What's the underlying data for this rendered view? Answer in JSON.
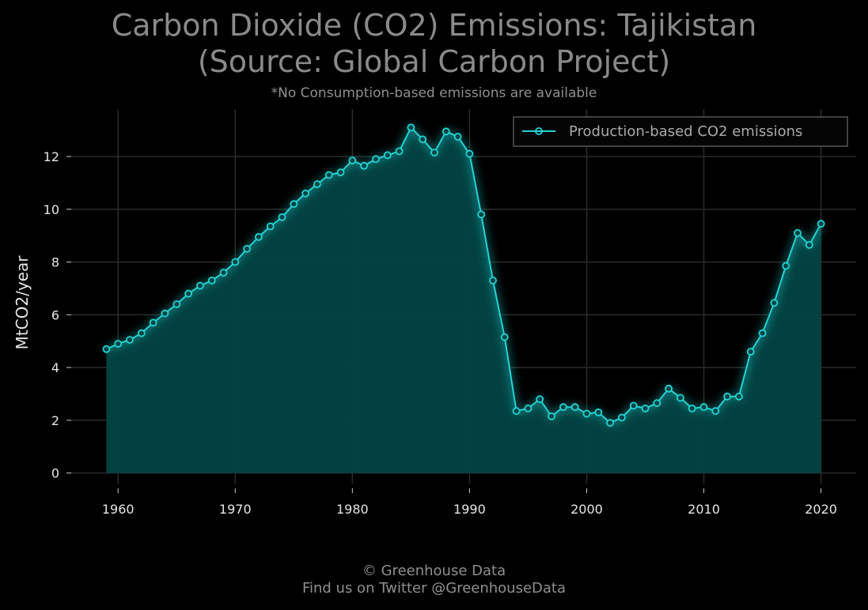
{
  "chart_data": {
    "type": "area",
    "title_line1": "Carbon Dioxide (CO2) Emissions: Tajikistan",
    "title_line2": "(Source: Global Carbon Project)",
    "subtitle": "*No Consumption-based emissions are available",
    "ylabel": "MtCO2/year",
    "xlim": [
      1956,
      2023
    ],
    "ylim": [
      -0.4,
      13.8
    ],
    "xticks": [
      1960,
      1970,
      1980,
      1990,
      2000,
      2010,
      2020
    ],
    "yticks": [
      0,
      2,
      4,
      6,
      8,
      10,
      12
    ],
    "grid": true,
    "legend_position": "top-right",
    "series": [
      {
        "name": "Production-based CO2 emissions",
        "color": "#22d3d3",
        "fill": "#034545",
        "x": [
          1959,
          1960,
          1961,
          1962,
          1963,
          1964,
          1965,
          1966,
          1967,
          1968,
          1969,
          1970,
          1971,
          1972,
          1973,
          1974,
          1975,
          1976,
          1977,
          1978,
          1979,
          1980,
          1981,
          1982,
          1983,
          1984,
          1985,
          1986,
          1987,
          1988,
          1989,
          1990,
          1991,
          1992,
          1993,
          1994,
          1995,
          1996,
          1997,
          1998,
          1999,
          2000,
          2001,
          2002,
          2003,
          2004,
          2005,
          2006,
          2007,
          2008,
          2009,
          2010,
          2011,
          2012,
          2013,
          2014,
          2015,
          2016,
          2017,
          2018,
          2019,
          2020
        ],
        "y": [
          4.7,
          4.9,
          5.05,
          5.3,
          5.7,
          6.05,
          6.4,
          6.8,
          7.1,
          7.3,
          7.6,
          8.0,
          8.5,
          8.95,
          9.35,
          9.7,
          10.2,
          10.6,
          10.95,
          11.3,
          11.4,
          11.85,
          11.65,
          11.9,
          12.05,
          12.2,
          13.1,
          12.65,
          12.15,
          12.95,
          12.75,
          12.1,
          9.8,
          7.3,
          5.15,
          2.35,
          2.45,
          2.8,
          2.15,
          2.5,
          2.5,
          2.25,
          2.3,
          1.9,
          2.1,
          2.55,
          2.45,
          2.65,
          3.2,
          2.85,
          2.45,
          2.5,
          2.35,
          2.9,
          2.9,
          4.6,
          5.3,
          6.45,
          7.85,
          9.1,
          8.65,
          9.45
        ]
      }
    ]
  },
  "footer": {
    "line1": "© Greenhouse Data",
    "line2": "Find us on Twitter @GreenhouseData"
  }
}
